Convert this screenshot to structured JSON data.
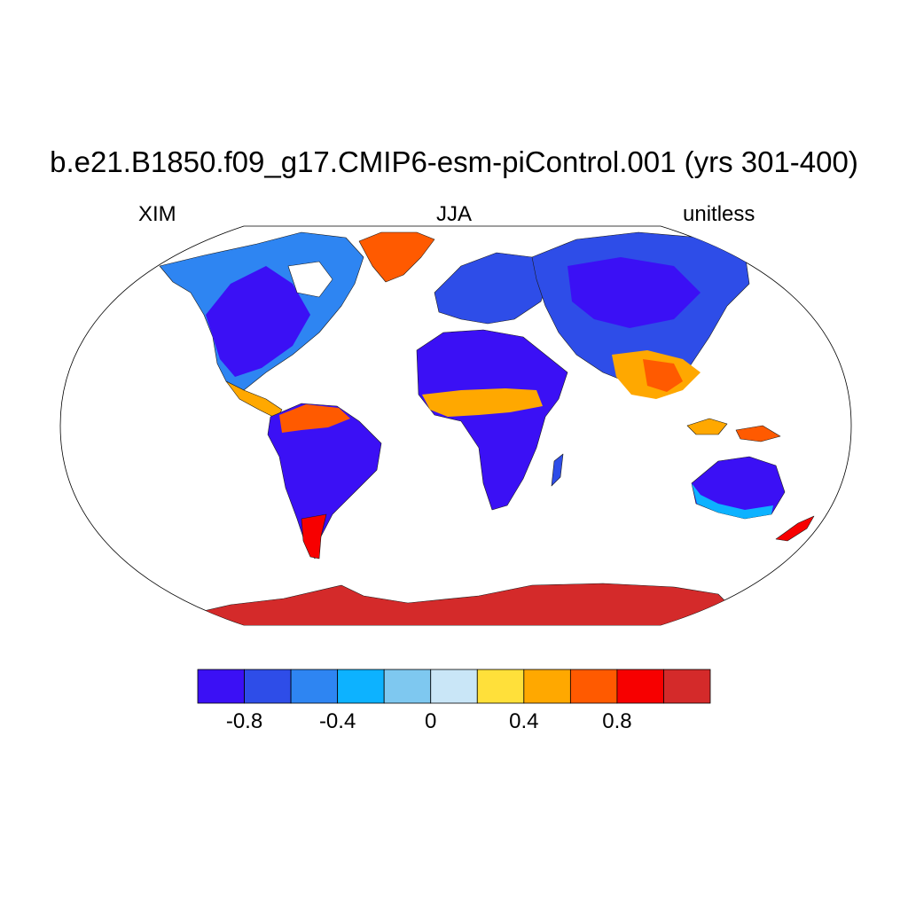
{
  "title": "b.e21.B1850.f09_g17.CMIP6-esm-piControl.001 (yrs 301-400)",
  "left_string": "XIM",
  "center_string": "JJA",
  "right_string": "unitless",
  "colorbar": {
    "colors": [
      "#3b10f5",
      "#2e4de8",
      "#2e85f2",
      "#0db2ff",
      "#7ec8f0",
      "#c9e6f7",
      "#ffe03a",
      "#ffa800",
      "#ff5a00",
      "#f70000",
      "#d42a2a"
    ],
    "tick_labels": [
      "-0.8",
      "-0.4",
      "0",
      "0.4",
      "0.8"
    ]
  }
}
